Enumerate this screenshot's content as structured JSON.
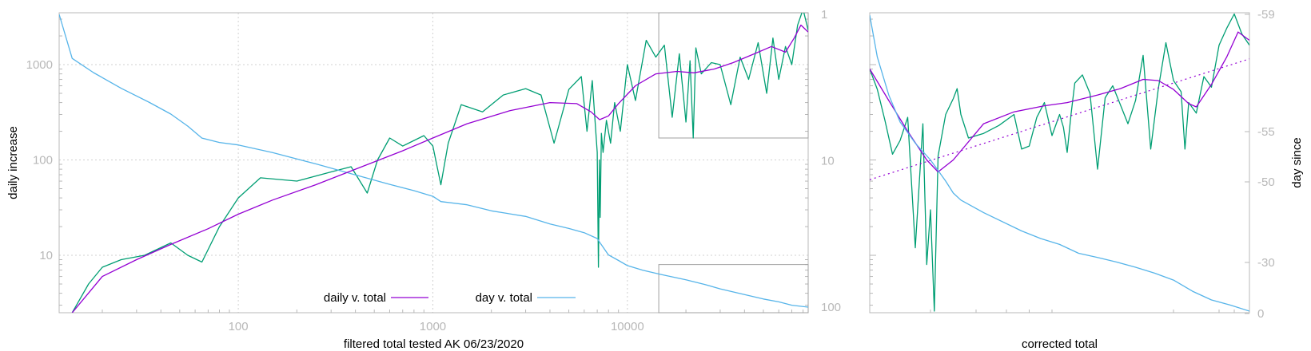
{
  "chart_data": [
    {
      "type": "line",
      "title": "",
      "xlabel": "filtered total tested AK 06/23/2020",
      "ylabel": "daily increase",
      "y2label": "",
      "x_scale": "log",
      "y_scale": "log",
      "y2_scale": "log-reversed",
      "xlim": [
        12,
        85000
      ],
      "ylim": [
        2.5,
        3500
      ],
      "y2lim": [
        1,
        100
      ],
      "grid": true,
      "x_ticks": [
        {
          "v": 100,
          "label": "100"
        },
        {
          "v": 1000,
          "label": "1000"
        },
        {
          "v": 10000,
          "label": "10000"
        }
      ],
      "y_ticks": [
        {
          "v": 10,
          "label": "10"
        },
        {
          "v": 100,
          "label": "100"
        },
        {
          "v": 1000,
          "label": "1000"
        }
      ],
      "y2_ticks": [
        {
          "v": 1,
          "label": "1"
        },
        {
          "v": 10,
          "label": "10"
        },
        {
          "v": 100,
          "label": "100"
        }
      ],
      "legend": {
        "placement": "bottom-center",
        "entries": [
          {
            "label": "daily v. total",
            "color": "#9400d3"
          },
          {
            "label": "day v. total",
            "color": "#56b4e9"
          }
        ]
      },
      "inset_boxes": [
        {
          "x": [
            14500,
            85000
          ],
          "y": [
            170,
            3500
          ]
        },
        {
          "x": [
            14500,
            85000
          ],
          "y": [
            2.5,
            8
          ]
        }
      ],
      "series": [
        {
          "name": "daily v. total",
          "color": "#9400d3",
          "axis": "y",
          "x": [
            14,
            20,
            30,
            45,
            70,
            100,
            150,
            250,
            400,
            700,
            1000,
            1500,
            2500,
            4000,
            5500,
            6500,
            7200,
            8000,
            9000,
            11000,
            14000,
            18000,
            22000,
            28000,
            35000,
            45000,
            55000,
            65000,
            72000,
            78000,
            85000
          ],
          "y": [
            2.5,
            6,
            9,
            13,
            19,
            27,
            38,
            55,
            80,
            125,
            170,
            240,
            330,
            400,
            390,
            320,
            265,
            290,
            390,
            600,
            800,
            850,
            820,
            900,
            1050,
            1300,
            1550,
            1350,
            1900,
            2600,
            2200
          ]
        },
        {
          "name": "",
          "color": "#009e73",
          "axis": "y",
          "x": [
            14,
            17,
            20,
            25,
            33,
            45,
            55,
            65,
            80,
            100,
            130,
            200,
            300,
            380,
            460,
            520,
            600,
            700,
            900,
            1000,
            1100,
            1200,
            1400,
            1800,
            2300,
            3000,
            3600,
            4200,
            5000,
            5800,
            6200,
            6600,
            7000,
            7100,
            7180,
            7250,
            7350,
            7500,
            7800,
            8200,
            8600,
            9200,
            10000,
            11000,
            12500,
            14000,
            15500,
            17000,
            18500,
            20000,
            21000,
            21800,
            22500,
            24000,
            27000,
            30000,
            34000,
            38000,
            42000,
            47000,
            52000,
            56000,
            60000,
            65000,
            70000,
            75000,
            80000,
            85000
          ],
          "y": [
            2.5,
            5,
            7.5,
            9,
            10,
            13.5,
            10,
            8.5,
            20,
            40,
            65,
            60,
            75,
            85,
            45,
            100,
            170,
            140,
            180,
            140,
            55,
            150,
            380,
            320,
            480,
            560,
            480,
            150,
            550,
            750,
            200,
            680,
            120,
            7.5,
            100,
            25,
            190,
            120,
            260,
            150,
            400,
            200,
            1000,
            420,
            1800,
            1200,
            1600,
            280,
            1300,
            250,
            1100,
            170,
            1500,
            800,
            1050,
            1000,
            380,
            1200,
            700,
            1700,
            500,
            1900,
            700,
            1550,
            1000,
            2600,
            3800,
            2300
          ]
        },
        {
          "name": "day v. total",
          "color": "#56b4e9",
          "axis": "y2",
          "x": [
            12,
            14,
            18,
            25,
            35,
            45,
            55,
            65,
            80,
            100,
            150,
            250,
            400,
            600,
            800,
            1000,
            1100,
            1500,
            2000,
            3000,
            4000,
            5000,
            6000,
            7000,
            7300,
            8000,
            9000,
            10000,
            12000,
            15000,
            20000,
            25000,
            30000,
            40000,
            50000,
            60000,
            70000,
            85000
          ],
          "y2": [
            1,
            2,
            2.5,
            3.2,
            4,
            4.8,
            5.8,
            7,
            7.5,
            7.8,
            8.8,
            10.5,
            12.5,
            14.5,
            16,
            17.5,
            19,
            20,
            22,
            24,
            27,
            29,
            31,
            34,
            37,
            44,
            48,
            52,
            56,
            60,
            65,
            70,
            75,
            82,
            88,
            92,
            97,
            100
          ]
        }
      ]
    },
    {
      "type": "line",
      "title": "",
      "xlabel": "corrected total",
      "ylabel": "",
      "y2label": "day since",
      "x_scale": "linear",
      "y_scale": "log",
      "y2_scale": "nonlinear",
      "xlim": [
        0,
        1
      ],
      "ylim": [
        2.5,
        3500
      ],
      "y2_ticks": [
        {
          "v": -59,
          "label": "-59"
        },
        {
          "v": -55,
          "label": "-55"
        },
        {
          "v": -50,
          "label": "-50"
        },
        {
          "v": -30,
          "label": "-30"
        },
        {
          "v": 0,
          "label": "0"
        }
      ],
      "grid": false,
      "series": [
        {
          "name": "",
          "color": "#009e73",
          "axis": "y",
          "x": [
            0,
            0.02,
            0.04,
            0.06,
            0.08,
            0.1,
            0.12,
            0.14,
            0.15,
            0.16,
            0.17,
            0.18,
            0.2,
            0.22,
            0.23,
            0.24,
            0.26,
            0.3,
            0.34,
            0.38,
            0.4,
            0.42,
            0.44,
            0.46,
            0.48,
            0.5,
            0.51,
            0.52,
            0.53,
            0.54,
            0.56,
            0.58,
            0.6,
            0.62,
            0.64,
            0.66,
            0.68,
            0.7,
            0.72,
            0.74,
            0.76,
            0.78,
            0.8,
            0.82,
            0.83,
            0.84,
            0.86,
            0.88,
            0.9,
            0.92,
            0.94,
            0.96,
            0.98,
            1.0
          ],
          "y": [
            900,
            550,
            260,
            115,
            160,
            280,
            12,
            240,
            8,
            30,
            2.6,
            110,
            300,
            440,
            560,
            300,
            170,
            190,
            230,
            300,
            130,
            140,
            280,
            400,
            180,
            300,
            220,
            120,
            300,
            640,
            780,
            500,
            80,
            450,
            600,
            380,
            240,
            420,
            1250,
            130,
            560,
            1700,
            680,
            520,
            130,
            400,
            310,
            750,
            580,
            1600,
            2400,
            3400,
            2100,
            1600
          ]
        },
        {
          "name": "",
          "color": "#9400d3",
          "axis": "y",
          "x": [
            0,
            0.05,
            0.1,
            0.15,
            0.18,
            0.22,
            0.3,
            0.38,
            0.46,
            0.52,
            0.6,
            0.66,
            0.72,
            0.76,
            0.8,
            0.84,
            0.86,
            0.9,
            0.94,
            0.97,
            1.0
          ],
          "y": [
            900,
            420,
            200,
            100,
            75,
            100,
            240,
            320,
            370,
            400,
            480,
            560,
            700,
            680,
            550,
            390,
            360,
            620,
            1200,
            2200,
            1800
          ]
        },
        {
          "name": "",
          "color": "#9400d3",
          "axis": "y",
          "dashed": true,
          "x": [
            0,
            1
          ],
          "y": [
            62,
            1150
          ]
        },
        {
          "name": "",
          "color": "#56b4e9",
          "axis": "y",
          "x": [
            0,
            0.02,
            0.05,
            0.08,
            0.12,
            0.16,
            0.2,
            0.22,
            0.24,
            0.3,
            0.4,
            0.45,
            0.5,
            0.55,
            0.6,
            0.65,
            0.7,
            0.75,
            0.8,
            0.85,
            0.9,
            0.95,
            1.0
          ],
          "y": [
            3300,
            1200,
            480,
            250,
            150,
            100,
            60,
            45,
            38,
            28,
            18,
            15,
            13,
            10.5,
            9.5,
            8.5,
            7.5,
            6.5,
            5.5,
            4.2,
            3.4,
            3.0,
            2.6
          ]
        }
      ]
    }
  ]
}
